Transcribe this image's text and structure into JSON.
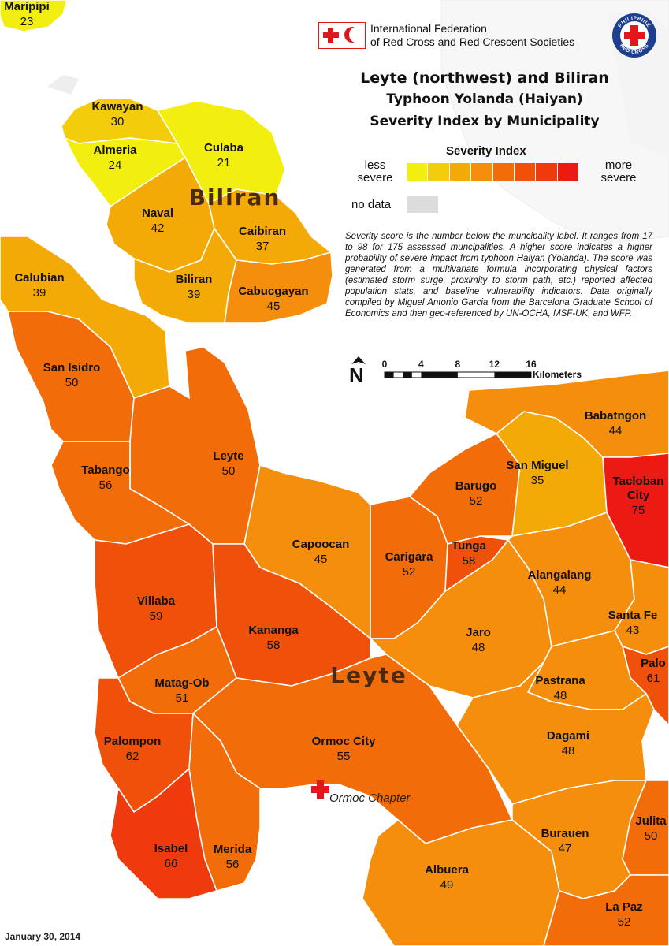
{
  "header": {
    "org_line1": "International Federation",
    "org_line2": "of Red Cross and Red Crescent Societies",
    "badge_top": "PHILIPPINE",
    "badge_bottom": "RED CROSS",
    "title": "Leyte (northwest) and Biliran",
    "subtitle1": "Typhoon Yolanda (Haiyan)",
    "subtitle2": "Severity Index by Municipality"
  },
  "legend": {
    "title": "Severity Index",
    "less_label": "less severe",
    "more_label": "more severe",
    "nodata_label": "no data",
    "ramp_colors": [
      "#f2ef10",
      "#f3cc0a",
      "#f4aa06",
      "#f48e0c",
      "#f26d0a",
      "#f0510a",
      "#ee3a0c",
      "#ec1a12"
    ],
    "nodata_color": "#dcdcdc"
  },
  "note": "Severity score is the number below the muncipality label. It ranges from 17 to 98 for 175 assessed muncipalities. A higher score indicates a higher probability of severe impact from typhoon Haiyan (Yolanda). The score was generated from a multivariate formula incorporating physical factors (estimated storm surge, proximity to storm path, etc.) reported affected population stats, and baseline vulnerability indicators. Data originally compiled by Miguel Antonio Garcia from the Barcelona Graduate School of Economics and then geo-referenced by UN-OCHA, MSF-UK, and WFP.",
  "scale": {
    "north": "N",
    "ticks": [
      "0",
      "4",
      "8",
      "12",
      "16"
    ],
    "unit": "Kilometers"
  },
  "islands": {
    "biliran": "Biliran",
    "leyte": "Leyte"
  },
  "chapter_label": "Ormoc Chapter",
  "date": "January 30, 2014",
  "municipalities": [
    {
      "name": "Maripipi",
      "score": "23"
    },
    {
      "name": "Kawayan",
      "score": "30"
    },
    {
      "name": "Almeria",
      "score": "24"
    },
    {
      "name": "Culaba",
      "score": "21"
    },
    {
      "name": "Naval",
      "score": "42"
    },
    {
      "name": "Caibiran",
      "score": "37"
    },
    {
      "name": "Biliran",
      "score": "39"
    },
    {
      "name": "Cabucgayan",
      "score": "45"
    },
    {
      "name": "Calubian",
      "score": "39"
    },
    {
      "name": "San Isidro",
      "score": "50"
    },
    {
      "name": "Leyte",
      "score": "50"
    },
    {
      "name": "Tabango",
      "score": "56"
    },
    {
      "name": "Capoocan",
      "score": "45"
    },
    {
      "name": "Carigara",
      "score": "52"
    },
    {
      "name": "Barugo",
      "score": "52"
    },
    {
      "name": "Tunga",
      "score": "58"
    },
    {
      "name": "San Miguel",
      "score": "35"
    },
    {
      "name": "Babatngon",
      "score": "44"
    },
    {
      "name": "Tacloban City",
      "score": "75"
    },
    {
      "name": "Villaba",
      "score": "59"
    },
    {
      "name": "Kananga",
      "score": "58"
    },
    {
      "name": "Jaro",
      "score": "48"
    },
    {
      "name": "Alangalang",
      "score": "44"
    },
    {
      "name": "Santa Fe",
      "score": "43"
    },
    {
      "name": "Palo",
      "score": "61"
    },
    {
      "name": "Matag-Ob",
      "score": "51"
    },
    {
      "name": "Pastrana",
      "score": "48"
    },
    {
      "name": "Palompon",
      "score": "62"
    },
    {
      "name": "Ormoc City",
      "score": "55"
    },
    {
      "name": "Dagami",
      "score": "48"
    },
    {
      "name": "Isabel",
      "score": "66"
    },
    {
      "name": "Merida",
      "score": "56"
    },
    {
      "name": "Albuera",
      "score": "49"
    },
    {
      "name": "Burauen",
      "score": "47"
    },
    {
      "name": "Julita",
      "score": "50"
    },
    {
      "name": "La Paz",
      "score": "52"
    }
  ]
}
